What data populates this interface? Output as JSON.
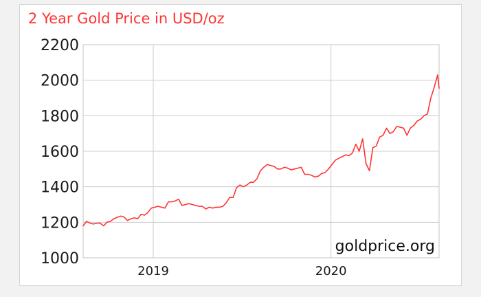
{
  "chart_data": {
    "type": "line",
    "title": "2 Year Gold Price in USD/oz",
    "xlabel": "",
    "ylabel": "",
    "watermark": "goldprice.org",
    "ylim": [
      1000,
      2200
    ],
    "yticks": [
      1000,
      1200,
      1400,
      1600,
      1800,
      2000,
      2200
    ],
    "xlim": [
      "2018-08-10",
      "2020-08-10"
    ],
    "xticks": [
      {
        "label": "2019",
        "date": "2019-01-01"
      },
      {
        "label": "2020",
        "date": "2020-01-01"
      }
    ],
    "grid": true,
    "line_color": "#ff3333",
    "series": [
      {
        "x": [
          "2018-08-10",
          "2018-08-17",
          "2018-08-24",
          "2018-08-31",
          "2018-09-07",
          "2018-09-14",
          "2018-09-21",
          "2018-09-28",
          "2018-10-05",
          "2018-10-12",
          "2018-10-19",
          "2018-10-26",
          "2018-11-02",
          "2018-11-09",
          "2018-11-16",
          "2018-11-23",
          "2018-11-30",
          "2018-12-07",
          "2018-12-14",
          "2018-12-21",
          "2018-12-28",
          "2019-01-04",
          "2019-01-11",
          "2019-01-18",
          "2019-01-25",
          "2019-02-01",
          "2019-02-08",
          "2019-02-15",
          "2019-02-22",
          "2019-03-01",
          "2019-03-08",
          "2019-03-15",
          "2019-03-22",
          "2019-03-29",
          "2019-04-05",
          "2019-04-12",
          "2019-04-19",
          "2019-04-26",
          "2019-05-03",
          "2019-05-10",
          "2019-05-17",
          "2019-05-24",
          "2019-05-31",
          "2019-06-07",
          "2019-06-14",
          "2019-06-21",
          "2019-06-28",
          "2019-07-05",
          "2019-07-12",
          "2019-07-19",
          "2019-07-26",
          "2019-08-02",
          "2019-08-09",
          "2019-08-16",
          "2019-08-23",
          "2019-08-30",
          "2019-09-06",
          "2019-09-13",
          "2019-09-20",
          "2019-09-27",
          "2019-10-04",
          "2019-10-11",
          "2019-10-18",
          "2019-10-25",
          "2019-11-01",
          "2019-11-08",
          "2019-11-15",
          "2019-11-22",
          "2019-11-29",
          "2019-12-06",
          "2019-12-13",
          "2019-12-20",
          "2019-12-27",
          "2020-01-03",
          "2020-01-10",
          "2020-01-17",
          "2020-01-24",
          "2020-01-31",
          "2020-02-07",
          "2020-02-14",
          "2020-02-21",
          "2020-02-28",
          "2020-03-06",
          "2020-03-13",
          "2020-03-20",
          "2020-03-27",
          "2020-04-03",
          "2020-04-10",
          "2020-04-17",
          "2020-04-24",
          "2020-05-01",
          "2020-05-08",
          "2020-05-15",
          "2020-05-22",
          "2020-05-29",
          "2020-06-05",
          "2020-06-12",
          "2020-06-19",
          "2020-06-26",
          "2020-07-03",
          "2020-07-10",
          "2020-07-17",
          "2020-07-24",
          "2020-07-31",
          "2020-08-07",
          "2020-08-10"
        ],
        "y": [
          1180,
          1205,
          1195,
          1190,
          1195,
          1195,
          1180,
          1200,
          1205,
          1220,
          1228,
          1235,
          1230,
          1210,
          1220,
          1225,
          1220,
          1245,
          1240,
          1255,
          1280,
          1285,
          1290,
          1285,
          1280,
          1315,
          1315,
          1320,
          1330,
          1295,
          1300,
          1305,
          1300,
          1295,
          1290,
          1290,
          1275,
          1285,
          1280,
          1285,
          1285,
          1290,
          1310,
          1340,
          1340,
          1395,
          1410,
          1400,
          1410,
          1425,
          1425,
          1445,
          1490,
          1510,
          1525,
          1520,
          1515,
          1500,
          1500,
          1510,
          1505,
          1495,
          1500,
          1505,
          1510,
          1470,
          1470,
          1465,
          1455,
          1460,
          1475,
          1480,
          1500,
          1525,
          1550,
          1560,
          1570,
          1580,
          1575,
          1590,
          1640,
          1600,
          1670,
          1530,
          1490,
          1620,
          1630,
          1680,
          1690,
          1730,
          1700,
          1710,
          1740,
          1735,
          1730,
          1690,
          1730,
          1745,
          1770,
          1780,
          1800,
          1810,
          1900,
          1960,
          2030,
          1955
        ]
      }
    ]
  }
}
